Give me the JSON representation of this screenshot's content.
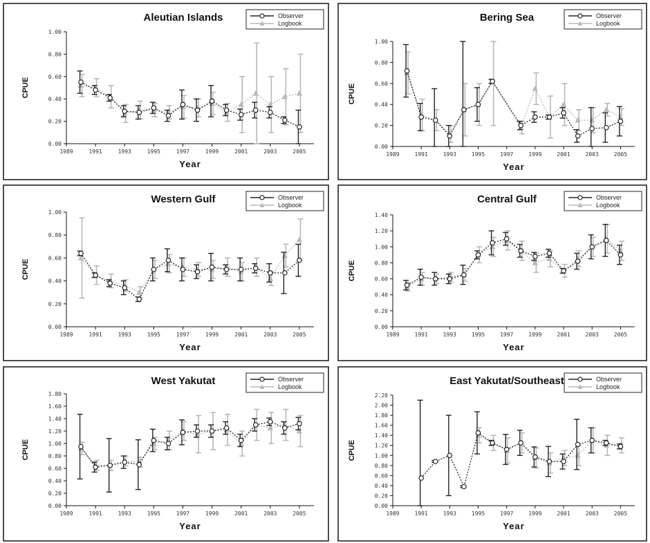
{
  "colors": {
    "observer": "#222222",
    "logbook": "#b8b8b8"
  },
  "legend": {
    "observer": "Observer",
    "logbook": "Logbook"
  },
  "chart_data": [
    {
      "type": "line",
      "title": "Aleutian Islands",
      "xlabel": "Year",
      "ylabel": "CPUE",
      "xlim": [
        1989,
        2006
      ],
      "ylim": [
        0,
        1.0
      ],
      "xticks": [
        "1989",
        "1991",
        "1993",
        "1995",
        "1997",
        "1999",
        "2001",
        "2003",
        "2005"
      ],
      "yticks": [
        "0.00",
        "0.20",
        "0.40",
        "0.60",
        "0.80",
        "1.00"
      ],
      "legend_position": "top-right",
      "series": [
        {
          "name": "Observer",
          "x": [
            1990,
            1991,
            1992,
            1993,
            1994,
            1995,
            1996,
            1997,
            1998,
            1999,
            2000,
            2001,
            2002,
            2003,
            2004,
            2005
          ],
          "y": [
            0.55,
            0.48,
            0.41,
            0.29,
            0.28,
            0.32,
            0.25,
            0.35,
            0.3,
            0.38,
            0.3,
            0.26,
            0.3,
            0.28,
            0.21,
            0.15
          ],
          "err": [
            0.1,
            0.04,
            0.03,
            0.05,
            0.06,
            0.05,
            0.05,
            0.13,
            0.1,
            0.14,
            0.05,
            0.05,
            0.07,
            0.05,
            0.03,
            0.15
          ]
        },
        {
          "name": "Logbook",
          "x": [
            1990,
            1991,
            1992,
            1993,
            1994,
            1995,
            1996,
            1997,
            1998,
            1999,
            2000,
            2001,
            2002,
            2003,
            2004,
            2005
          ],
          "y": [
            0.52,
            0.5,
            0.42,
            0.27,
            0.3,
            0.3,
            0.28,
            0.33,
            0.32,
            0.36,
            0.28,
            0.35,
            0.45,
            0.35,
            0.42,
            0.45
          ],
          "err": [
            0.1,
            0.08,
            0.1,
            0.08,
            0.08,
            0.06,
            0.06,
            0.1,
            0.08,
            0.1,
            0.08,
            0.25,
            0.45,
            0.25,
            0.25,
            0.35
          ]
        }
      ]
    },
    {
      "type": "line",
      "title": "Bering Sea",
      "xlabel": "Year",
      "ylabel": "CPUE",
      "xlim": [
        1989,
        2006
      ],
      "ylim": [
        0,
        1.0
      ],
      "xticks": [
        "1989",
        "1991",
        "1993",
        "1995",
        "1997",
        "1999",
        "2001",
        "2003",
        "2005"
      ],
      "yticks": [
        "0.00",
        "0.20",
        "0.40",
        "0.60",
        "0.80",
        "1.00"
      ],
      "legend_position": "top-right",
      "series": [
        {
          "name": "Observer",
          "x": [
            1990,
            1991,
            1992,
            1993,
            1994,
            1995,
            1996,
            1998,
            1999,
            2000,
            2001,
            2002,
            2003,
            2004,
            2005
          ],
          "y": [
            0.72,
            0.28,
            0.25,
            0.1,
            0.35,
            0.4,
            0.62,
            0.2,
            0.28,
            0.28,
            0.32,
            0.1,
            0.17,
            0.18,
            0.24
          ],
          "err": [
            0.25,
            0.13,
            0.3,
            0.1,
            0.68,
            0.16,
            0.02,
            0.04,
            0.05,
            0.02,
            0.05,
            0.06,
            0.2,
            0.14,
            0.14
          ]
        },
        {
          "name": "Logbook",
          "x": [
            1990,
            1991,
            1992,
            1993,
            1994,
            1995,
            1996,
            1998,
            1999,
            2000,
            2001,
            2002,
            2003,
            2004,
            2005
          ],
          "y": [
            0.7,
            0.3,
            0.25,
            0.12,
            0.35,
            0.4,
            0.62,
            0.18,
            0.55,
            0.28,
            0.4,
            0.25,
            0.25,
            0.35,
            0.28
          ],
          "err": [
            0.2,
            0.15,
            0.1,
            0.08,
            0.25,
            0.2,
            0.42,
            0.06,
            0.15,
            0.2,
            0.2,
            0.1,
            0.12,
            0.06,
            0.08
          ]
        }
      ]
    },
    {
      "type": "line",
      "title": "Western Gulf",
      "xlabel": "Year",
      "ylabel": "CPUE",
      "xlim": [
        1989,
        2006
      ],
      "ylim": [
        0,
        1.0
      ],
      "xticks": [
        "1989",
        "1991",
        "1993",
        "1995",
        "1997",
        "1999",
        "2001",
        "2003",
        "2005"
      ],
      "yticks": [
        "0.00",
        "0.20",
        "0.40",
        "0.60",
        "0.80",
        "1.00"
      ],
      "legend_position": "top-right",
      "series": [
        {
          "name": "Observer",
          "x": [
            1990,
            1991,
            1992,
            1993,
            1994,
            1995,
            1996,
            1997,
            1998,
            1999,
            2000,
            2001,
            2002,
            2003,
            2004,
            2005
          ],
          "y": [
            0.64,
            0.45,
            0.38,
            0.34,
            0.24,
            0.5,
            0.58,
            0.5,
            0.48,
            0.52,
            0.5,
            0.5,
            0.51,
            0.47,
            0.47,
            0.58
          ],
          "err": [
            0.02,
            0.02,
            0.03,
            0.06,
            0.02,
            0.1,
            0.1,
            0.1,
            0.06,
            0.12,
            0.04,
            0.1,
            0.04,
            0.08,
            0.18,
            0.14
          ]
        },
        {
          "name": "Logbook",
          "x": [
            1990,
            1991,
            1992,
            1993,
            1994,
            1995,
            1996,
            1997,
            1998,
            1999,
            2000,
            2001,
            2002,
            2003,
            2004,
            2005
          ],
          "y": [
            0.6,
            0.45,
            0.4,
            0.36,
            0.3,
            0.5,
            0.55,
            0.52,
            0.5,
            0.5,
            0.52,
            0.48,
            0.52,
            0.42,
            0.62,
            0.76
          ],
          "err": [
            0.35,
            0.08,
            0.06,
            0.05,
            0.05,
            0.08,
            0.08,
            0.08,
            0.06,
            0.08,
            0.08,
            0.08,
            0.08,
            0.06,
            0.1,
            0.18
          ]
        }
      ]
    },
    {
      "type": "line",
      "title": "Central Gulf",
      "xlabel": "Year",
      "ylabel": "CPUE",
      "xlim": [
        1989,
        2006
      ],
      "ylim": [
        0,
        1.4
      ],
      "xticks": [
        "1989",
        "1991",
        "1993",
        "1995",
        "1997",
        "1999",
        "2001",
        "2003",
        "2005"
      ],
      "yticks": [
        "0.00",
        "0.20",
        "0.40",
        "0.60",
        "0.80",
        "1.00",
        "1.20",
        "1.40"
      ],
      "legend_position": "top-right",
      "series": [
        {
          "name": "Observer",
          "x": [
            1990,
            1991,
            1992,
            1993,
            1994,
            1995,
            1996,
            1997,
            1998,
            1999,
            2000,
            2001,
            2002,
            2003,
            2004,
            2005
          ],
          "y": [
            0.52,
            0.62,
            0.6,
            0.6,
            0.65,
            0.9,
            1.05,
            1.1,
            0.95,
            0.88,
            0.92,
            0.7,
            0.82,
            1.0,
            1.08,
            0.9
          ],
          "err": [
            0.06,
            0.1,
            0.08,
            0.06,
            0.12,
            0.05,
            0.15,
            0.08,
            0.08,
            0.05,
            0.05,
            0.03,
            0.1,
            0.15,
            0.2,
            0.12
          ]
        },
        {
          "name": "Logbook",
          "x": [
            1990,
            1991,
            1992,
            1993,
            1994,
            1995,
            1996,
            1997,
            1998,
            1999,
            2000,
            2001,
            2002,
            2003,
            2004,
            2005
          ],
          "y": [
            0.5,
            0.6,
            0.6,
            0.62,
            0.65,
            0.9,
            1.0,
            1.08,
            0.95,
            0.8,
            0.85,
            0.7,
            0.85,
            1.0,
            1.1,
            0.95
          ],
          "err": [
            0.05,
            0.08,
            0.06,
            0.06,
            0.08,
            0.1,
            0.12,
            0.12,
            0.12,
            0.12,
            0.1,
            0.08,
            0.1,
            0.12,
            0.18,
            0.12
          ]
        }
      ]
    },
    {
      "type": "line",
      "title": "West Yakutat",
      "xlabel": "Year",
      "ylabel": "CPUE",
      "xlim": [
        1989,
        2006
      ],
      "ylim": [
        0,
        1.8
      ],
      "xticks": [
        "1989",
        "1991",
        "1993",
        "1995",
        "1997",
        "1999",
        "2001",
        "2003",
        "2005"
      ],
      "yticks": [
        "0.00",
        "0.20",
        "0.40",
        "0.60",
        "0.80",
        "1.00",
        "1.20",
        "1.40",
        "1.60",
        "1.80"
      ],
      "legend_position": "top-right",
      "series": [
        {
          "name": "Observer",
          "x": [
            1990,
            1991,
            1992,
            1993,
            1994,
            1995,
            1996,
            1997,
            1998,
            1999,
            2000,
            2001,
            2002,
            2003,
            2004,
            2005
          ],
          "y": [
            0.95,
            0.62,
            0.65,
            0.7,
            0.66,
            1.05,
            1.0,
            1.18,
            1.2,
            1.2,
            1.25,
            1.05,
            1.3,
            1.35,
            1.25,
            1.32
          ],
          "err": [
            0.52,
            0.08,
            0.43,
            0.1,
            0.4,
            0.18,
            0.1,
            0.2,
            0.1,
            0.1,
            0.1,
            0.1,
            0.1,
            0.06,
            0.1,
            0.1
          ]
        },
        {
          "name": "Logbook",
          "x": [
            1990,
            1991,
            1992,
            1993,
            1994,
            1995,
            1996,
            1997,
            1998,
            1999,
            2000,
            2001,
            2002,
            2003,
            2004,
            2005
          ],
          "y": [
            0.92,
            0.65,
            0.65,
            0.72,
            0.7,
            1.0,
            1.05,
            1.2,
            1.15,
            1.2,
            1.22,
            1.0,
            1.3,
            1.25,
            1.3,
            1.2
          ],
          "err": [
            0.1,
            0.08,
            0.08,
            0.08,
            0.08,
            0.1,
            0.15,
            0.15,
            0.3,
            0.3,
            0.25,
            0.2,
            0.25,
            0.25,
            0.25,
            0.25
          ]
        }
      ]
    },
    {
      "type": "line",
      "title": "East Yakutat/Southeast",
      "xlabel": "Year",
      "ylabel": "CPUE",
      "xlim": [
        1989,
        2006
      ],
      "ylim": [
        0,
        2.2
      ],
      "xticks": [
        "1989",
        "1991",
        "1993",
        "1995",
        "1997",
        "1999",
        "2001",
        "2003",
        "2005"
      ],
      "yticks": [
        "0.00",
        "0.20",
        "0.40",
        "0.60",
        "0.80",
        "1.00",
        "1.20",
        "1.40",
        "1.60",
        "1.80",
        "2.00",
        "2.20"
      ],
      "legend_position": "top-right",
      "series": [
        {
          "name": "Observer",
          "x": [
            1991,
            1992,
            1993,
            1994,
            1995,
            1996,
            1997,
            1998,
            1999,
            2000,
            2001,
            2002,
            2003,
            2004,
            2005
          ],
          "y": [
            0.55,
            0.88,
            1.0,
            0.38,
            1.45,
            1.25,
            1.12,
            1.25,
            0.97,
            0.88,
            0.88,
            1.22,
            1.3,
            1.25,
            1.18
          ],
          "err": [
            1.55,
            0.02,
            0.8,
            0.02,
            0.42,
            0.05,
            0.3,
            0.25,
            0.2,
            0.3,
            0.15,
            0.5,
            0.25,
            0.05,
            0.05
          ]
        },
        {
          "name": "Logbook",
          "x": [
            1995,
            1996,
            1997,
            1998,
            1999,
            2000,
            2001,
            2002,
            2003,
            2004,
            2005
          ],
          "y": [
            1.4,
            1.25,
            1.1,
            1.25,
            0.95,
            0.85,
            0.95,
            1.0,
            1.3,
            1.2,
            1.2
          ],
          "err": [
            0.15,
            0.15,
            0.25,
            0.2,
            0.2,
            0.2,
            0.15,
            0.2,
            0.25,
            0.2,
            0.15
          ]
        }
      ]
    }
  ]
}
